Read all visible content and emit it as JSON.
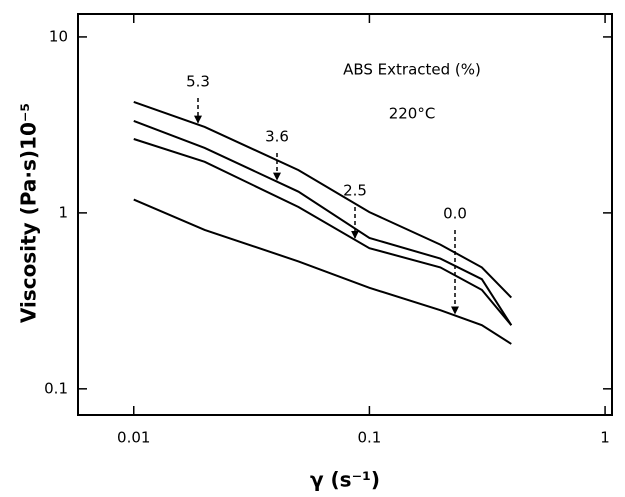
{
  "chart_data": {
    "type": "line",
    "legend_title": "ABS Extracted (%)",
    "subtitle": "220°C",
    "x_label": "γ (s⁻¹)",
    "y_label": "Viscosity (Pa·s)10⁻⁵",
    "x": [
      0.01,
      0.02,
      0.05,
      0.1,
      0.2,
      0.3,
      0.4
    ],
    "series": [
      {
        "name": "5.3",
        "color": "#000000",
        "values": [
          4.27,
          3.08,
          1.75,
          1.01,
          0.66,
          0.49,
          0.33
        ]
      },
      {
        "name": "3.6",
        "color": "#000000",
        "values": [
          3.33,
          2.34,
          1.32,
          0.72,
          0.55,
          0.42,
          0.23
        ]
      },
      {
        "name": "2.5",
        "color": "#000000",
        "values": [
          2.63,
          1.95,
          1.08,
          0.63,
          0.49,
          0.365,
          0.23
        ]
      },
      {
        "name": "0.0",
        "color": "#000000",
        "values": [
          1.19,
          0.8,
          0.53,
          0.375,
          0.28,
          0.23,
          0.18
        ]
      }
    ],
    "xlog": true,
    "ylog": true,
    "xlim": [
      0.0058,
      1.07
    ],
    "ylim": [
      0.071,
      13.5
    ],
    "xticks": [
      0.01,
      0.1,
      1
    ],
    "yticks": [
      0.1,
      1,
      10
    ],
    "grid": false
  }
}
